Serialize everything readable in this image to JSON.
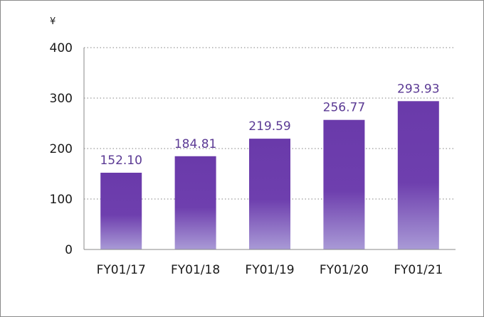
{
  "chart_data": {
    "type": "bar",
    "unit_label": "¥",
    "categories": [
      "FY01/17",
      "FY01/18",
      "FY01/19",
      "FY01/20",
      "FY01/21"
    ],
    "values": [
      152.1,
      184.81,
      219.59,
      256.77,
      293.93
    ],
    "value_labels": [
      "152.10",
      "184.81",
      "219.59",
      "256.77",
      "293.93"
    ],
    "ylim": [
      0,
      400
    ],
    "yticks": [
      0,
      100,
      200,
      300,
      400
    ],
    "grid": true,
    "bar_color_top": "#6a3aaa",
    "bar_color_bottom": "#a99ad6"
  }
}
